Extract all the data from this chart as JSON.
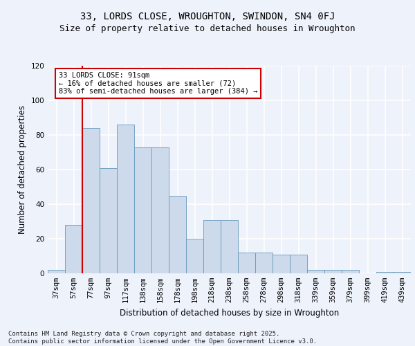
{
  "title1": "33, LORDS CLOSE, WROUGHTON, SWINDON, SN4 0FJ",
  "title2": "Size of property relative to detached houses in Wroughton",
  "xlabel": "Distribution of detached houses by size in Wroughton",
  "ylabel": "Number of detached properties",
  "bins": [
    "37sqm",
    "57sqm",
    "77sqm",
    "97sqm",
    "117sqm",
    "138sqm",
    "158sqm",
    "178sqm",
    "198sqm",
    "218sqm",
    "238sqm",
    "258sqm",
    "278sqm",
    "298sqm",
    "318sqm",
    "339sqm",
    "359sqm",
    "379sqm",
    "399sqm",
    "419sqm",
    "439sqm"
  ],
  "values": [
    2,
    28,
    84,
    61,
    86,
    73,
    73,
    45,
    20,
    31,
    31,
    12,
    12,
    11,
    11,
    2,
    2,
    2,
    0,
    1,
    1
  ],
  "bar_color": "#cddaeb",
  "bar_edge_color": "#6699bb",
  "background_color": "#eef2fb",
  "grid_color": "#ffffff",
  "vline_color": "#cc0000",
  "vline_bin_index": 2,
  "annotation_text": "33 LORDS CLOSE: 91sqm\n← 16% of detached houses are smaller (72)\n83% of semi-detached houses are larger (384) →",
  "annotation_box_color": "#ffffff",
  "annotation_box_edge": "#cc0000",
  "ylim": [
    0,
    120
  ],
  "yticks": [
    0,
    20,
    40,
    60,
    80,
    100,
    120
  ],
  "footer": "Contains HM Land Registry data © Crown copyright and database right 2025.\nContains public sector information licensed under the Open Government Licence v3.0.",
  "title1_fontsize": 10,
  "title2_fontsize": 9,
  "xlabel_fontsize": 8.5,
  "ylabel_fontsize": 8.5,
  "tick_fontsize": 7.5,
  "annotation_fontsize": 7.5,
  "footer_fontsize": 6.5
}
